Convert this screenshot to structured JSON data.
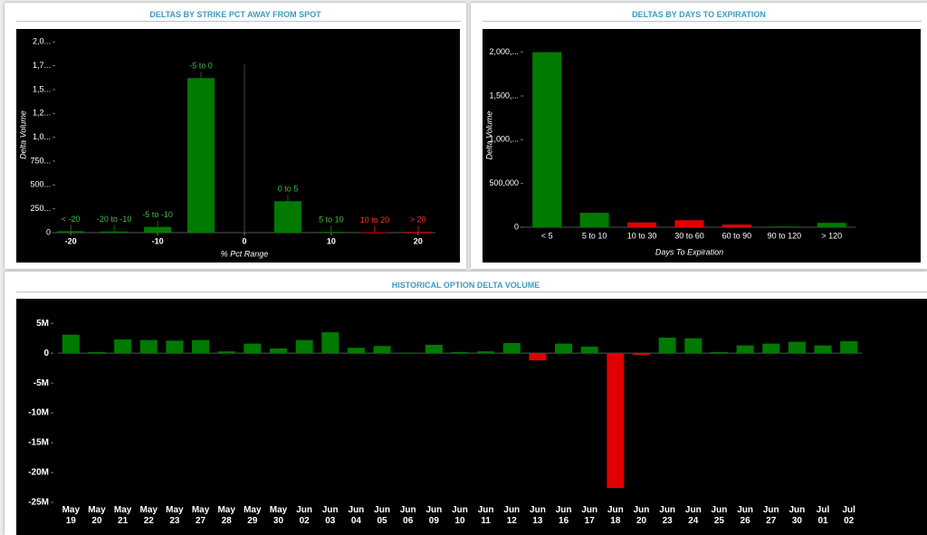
{
  "chart_data": [
    {
      "type": "bar",
      "title": "DELTAS BY STRIKE PCT AWAY FROM SPOT",
      "xlabel": "% Pct Range",
      "ylabel": "Delta Volume",
      "categories": [
        "< -20",
        "-20 to -10",
        "-5 to -10",
        "-5 to 0",
        "0 to 5",
        "5 to 10",
        "10 to 20",
        "> 20"
      ],
      "x": [
        -20,
        -15,
        -10,
        -5,
        5,
        10,
        15,
        20
      ],
      "values": [
        15000,
        12000,
        60000,
        1620000,
        330000,
        8000,
        5000,
        8000
      ],
      "colors": [
        "#007a00",
        "#007a00",
        "#007a00",
        "#007a00",
        "#007a00",
        "#007a00",
        "#e00000",
        "#e00000"
      ],
      "xlim": [
        -22,
        22
      ],
      "xticks": [
        -20,
        -10,
        0,
        10,
        20
      ],
      "ylim": [
        0,
        2050000
      ],
      "yticks": [
        0,
        {
          "value": 250000,
          "label": "250..."
        },
        {
          "value": 500000,
          "label": "500..."
        },
        {
          "value": 750000,
          "label": "750..."
        },
        {
          "value": 1000000,
          "label": "1,0..."
        },
        {
          "value": 1250000,
          "label": "1,2..."
        },
        {
          "value": 1500000,
          "label": "1,5..."
        },
        {
          "value": 1750000,
          "label": "1,7..."
        },
        {
          "value": 2000000,
          "label": "2,0..."
        }
      ],
      "grid": false
    },
    {
      "type": "bar",
      "title": "DELTAS BY DAYS TO EXPIRATION",
      "xlabel": "Days To Expiration",
      "ylabel": "Delta Volume",
      "categories": [
        "< 5",
        "5 to 10",
        "10 to 30",
        "30 to 60",
        "60 to 90",
        "90 to 120",
        "> 120"
      ],
      "values": [
        2000000,
        165000,
        55000,
        80000,
        30000,
        8000,
        50000
      ],
      "colors": [
        "#007a00",
        "#007a00",
        "#e00000",
        "#e00000",
        "#e00000",
        "#007a00",
        "#007a00"
      ],
      "ylim": [
        0,
        2100000
      ],
      "yticks": [
        0,
        {
          "value": 500000,
          "label": "500,000"
        },
        {
          "value": 1000000,
          "label": "1,000,..."
        },
        {
          "value": 1500000,
          "label": "1,500,..."
        },
        {
          "value": 2000000,
          "label": "2,000,..."
        }
      ],
      "grid": false
    },
    {
      "type": "bar",
      "title": "HISTORICAL OPTION DELTA VOLUME",
      "categories": [
        "May 19",
        "May 20",
        "May 21",
        "May 22",
        "May 23",
        "May 27",
        "May 28",
        "May 29",
        "May 30",
        "Jun 02",
        "Jun 03",
        "Jun 04",
        "Jun 05",
        "Jun 06",
        "Jun 09",
        "Jun 10",
        "Jun 11",
        "Jun 12",
        "Jun 13",
        "Jun 16",
        "Jun 17",
        "Jun 18",
        "Jun 20",
        "Jun 23",
        "Jun 24",
        "Jun 25",
        "Jun 26",
        "Jun 27",
        "Jun 30",
        "Jul 01",
        "Jul 02"
      ],
      "values": [
        3100000,
        200000,
        2300000,
        2200000,
        2100000,
        2200000,
        300000,
        1600000,
        800000,
        2200000,
        3500000,
        900000,
        1200000,
        100000,
        1400000,
        200000,
        300000,
        1700000,
        -1200000,
        1600000,
        1100000,
        -22600000,
        -300000,
        2600000,
        2500000,
        200000,
        1300000,
        1600000,
        1900000,
        1300000,
        2000000
      ],
      "positive_color": "#007a00",
      "negative_color": "#e00000",
      "ylim": [
        -25000000,
        7000000
      ],
      "yticks": [
        {
          "value": 5000000,
          "label": "5M"
        },
        0,
        {
          "value": -5000000,
          "label": "-5M"
        },
        {
          "value": -10000000,
          "label": "-10M"
        },
        {
          "value": -15000000,
          "label": "-15M"
        },
        {
          "value": -20000000,
          "label": "-20M"
        },
        {
          "value": -25000000,
          "label": "-25M"
        }
      ],
      "grid": false
    }
  ]
}
